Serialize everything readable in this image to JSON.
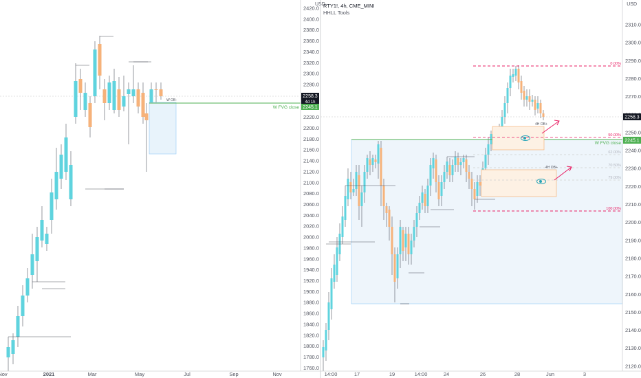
{
  "colors": {
    "up": "#5fd3de",
    "down": "#f6b27a",
    "green": "#4caf50",
    "pink": "#e91e63",
    "grid": "#e6e6e6"
  },
  "left": {
    "currency": "USD",
    "price_label": "2258.3",
    "time_left": "4d 1h",
    "green_label": "2245.1",
    "fvg_text": "W FVG close",
    "ob_text": "W OB-",
    "y_ticks": [
      "2420.0",
      "2400.0",
      "2380.0",
      "2360.0",
      "2340.0",
      "2320.0",
      "2300.0",
      "2280.0",
      "2260.0",
      "2240.0",
      "2220.0",
      "2200.0",
      "2180.0",
      "2160.0",
      "2140.0",
      "2120.0",
      "2100.0",
      "2080.0",
      "2060.0",
      "2040.0",
      "2020.0",
      "2000.0",
      "1980.0",
      "1960.0",
      "1940.0",
      "1920.0",
      "1900.0",
      "1880.0",
      "1860.0",
      "1840.0",
      "1820.0",
      "1800.0",
      "1780.0",
      "1760.0"
    ],
    "x_ticks": [
      "Nov",
      "2021",
      "Mar",
      "May",
      "Jul",
      "Sep",
      "Nov"
    ]
  },
  "right": {
    "currency": "USD",
    "symbol_line": "RTY1!, 4h, CME_MINI",
    "tool_line": "HHLL Tools",
    "price_label": "2258.3",
    "green_label": "2245.1",
    "fvg_text": "W FVG close",
    "ob_text_1": "4H OB+",
    "ob_text_2": "4H OB+",
    "fib": [
      "0.00%",
      "50.00%",
      "62.00%",
      "70.50%",
      "79.00%",
      "100.00%"
    ],
    "y_ticks": [
      "2310.0",
      "2300.0",
      "2290.0",
      "2280.0",
      "2270.0",
      "2260.0",
      "2250.0",
      "2240.0",
      "2230.0",
      "2220.0",
      "2210.0",
      "2200.0",
      "2190.0",
      "2180.0",
      "2170.0",
      "2160.0",
      "2150.0",
      "2140.0",
      "2130.0",
      "2120.0"
    ],
    "x_ticks": [
      "14:00",
      "17",
      "19",
      "14:00",
      "24",
      "26",
      "28",
      "Jun",
      "3"
    ]
  },
  "icons": {
    "eye_1": "eye-icon",
    "eye_2": "eye-icon",
    "arrow_1": "arrow-up-right-icon",
    "arrow_2": "arrow-up-right-icon"
  }
}
